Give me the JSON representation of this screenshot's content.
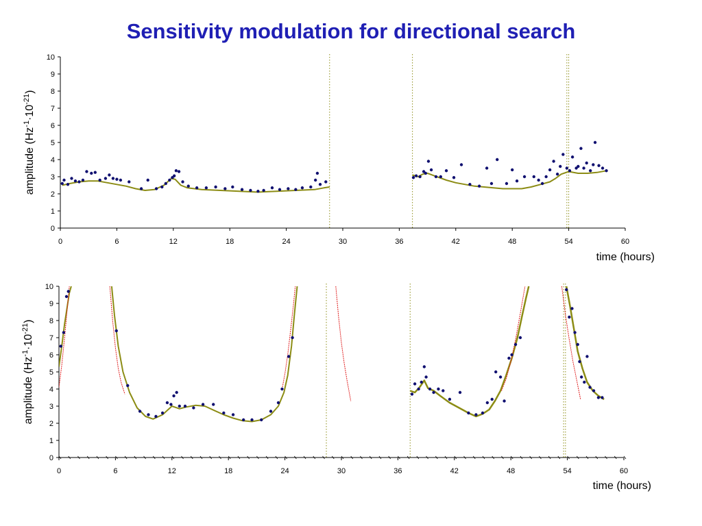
{
  "title": "Sensitivity modulation for directional search",
  "colors": {
    "title": "#1f1fb4",
    "curve": "#8c8c14",
    "points": "#101070",
    "red_curve": "#e02020",
    "vlines": "#8c8c14"
  },
  "chart_data": [
    {
      "type": "scatter",
      "xlabel": "time (hours)",
      "ylabel": "amplitude (Hz-1·10-21)",
      "xlim": [
        0,
        60
      ],
      "ylim": [
        0,
        10
      ],
      "xticks": [
        0,
        6,
        12,
        18,
        24,
        30,
        36,
        42,
        48,
        54,
        60
      ],
      "yticks": [
        0,
        1,
        2,
        3,
        4,
        5,
        6,
        7,
        8,
        9,
        10
      ],
      "grid": false,
      "vertical_lines": [
        28.6,
        37.4,
        53.8,
        54.0
      ],
      "series": [
        {
          "style": "line",
          "x": [
            0.2,
            1.0,
            2.0,
            3.0,
            4.0,
            5.0,
            6.0,
            7.0,
            8.0,
            9.0,
            10.0,
            11.0,
            11.8,
            12.2,
            12.8,
            13.5,
            15.0,
            17.0,
            19.0,
            21.0,
            23.0,
            25.0,
            27.0,
            28.0,
            28.6
          ],
          "y": [
            2.5,
            2.6,
            2.7,
            2.75,
            2.75,
            2.65,
            2.55,
            2.45,
            2.3,
            2.2,
            2.25,
            2.5,
            2.9,
            2.85,
            2.5,
            2.35,
            2.25,
            2.2,
            2.15,
            2.1,
            2.15,
            2.2,
            2.25,
            2.35,
            2.4
          ]
        },
        {
          "style": "line",
          "x": [
            37.4,
            38.0,
            38.5,
            39.0,
            40.0,
            41.0,
            42.0,
            43.0,
            44.0,
            45.0,
            46.0,
            47.0,
            48.0,
            49.0,
            50.0,
            51.0,
            52.0,
            52.6,
            53.2,
            54.0,
            55.0,
            56.0,
            57.0,
            58.0
          ],
          "y": [
            3.1,
            3.0,
            3.15,
            3.2,
            3.0,
            2.8,
            2.65,
            2.55,
            2.45,
            2.4,
            2.35,
            2.3,
            2.3,
            2.3,
            2.4,
            2.55,
            2.7,
            2.9,
            3.15,
            3.3,
            3.2,
            3.2,
            3.25,
            3.35
          ]
        },
        {
          "style": "points",
          "x": [
            0.2,
            0.4,
            0.8,
            1.2,
            1.6,
            2.0,
            2.4,
            2.8,
            3.3,
            3.7,
            4.2,
            4.8,
            5.2,
            5.6,
            6.0,
            6.4,
            7.3,
            8.6,
            9.3,
            10.2,
            10.8,
            11.2,
            11.6,
            11.9,
            12.1,
            12.3,
            12.6,
            13.0,
            13.6,
            14.5,
            15.5,
            16.5,
            17.5,
            18.3,
            19.3,
            20.2,
            21.0,
            21.6,
            22.5,
            23.3,
            24.2,
            25.0,
            25.7,
            26.6,
            27.1,
            27.3,
            27.6,
            28.2,
            37.5,
            37.8,
            38.2,
            38.6,
            38.8,
            39.1,
            39.4,
            39.9,
            40.4,
            41.0,
            41.8,
            42.6,
            43.5,
            44.5,
            45.3,
            45.8,
            46.4,
            47.4,
            48.0,
            48.5,
            49.3,
            50.3,
            50.8,
            51.2,
            51.6,
            52.0,
            52.4,
            52.8,
            53.1,
            53.4,
            53.8,
            54.1,
            54.4,
            54.8,
            55.0,
            55.3,
            55.6,
            55.9,
            56.3,
            56.6,
            56.8,
            57.2,
            57.6,
            58.0
          ],
          "y": [
            2.6,
            2.8,
            2.55,
            2.9,
            2.75,
            2.7,
            2.8,
            3.3,
            3.2,
            3.25,
            2.8,
            2.9,
            3.1,
            2.9,
            2.85,
            2.8,
            2.7,
            2.3,
            2.8,
            2.3,
            2.4,
            2.6,
            2.8,
            2.95,
            3.05,
            3.35,
            3.3,
            2.7,
            2.45,
            2.35,
            2.35,
            2.4,
            2.3,
            2.4,
            2.25,
            2.2,
            2.15,
            2.2,
            2.35,
            2.25,
            2.3,
            2.25,
            2.35,
            2.4,
            2.8,
            3.2,
            2.55,
            2.7,
            2.95,
            3.05,
            3.0,
            3.3,
            3.2,
            3.9,
            3.4,
            3.0,
            3.0,
            3.35,
            2.95,
            3.7,
            2.55,
            2.45,
            3.5,
            2.6,
            4.0,
            2.6,
            3.4,
            2.75,
            3.0,
            3.0,
            2.8,
            2.6,
            3.0,
            3.4,
            3.9,
            3.15,
            3.6,
            4.3,
            3.5,
            3.35,
            4.15,
            3.5,
            3.6,
            4.65,
            3.5,
            3.8,
            3.35,
            3.7,
            5.0,
            3.65,
            3.5,
            3.35
          ]
        }
      ]
    },
    {
      "type": "scatter",
      "xlabel": "time (hours)",
      "ylabel": "amplitude (Hz-1·10-21)",
      "xlim": [
        0,
        60
      ],
      "ylim": [
        0,
        10
      ],
      "xticks": [
        0,
        6,
        12,
        18,
        24,
        30,
        36,
        42,
        48,
        54,
        60
      ],
      "yticks": [
        0,
        1,
        2,
        3,
        4,
        5,
        6,
        7,
        8,
        9,
        10
      ],
      "grid": false,
      "vertical_lines": [
        28.4,
        37.3,
        53.6,
        53.8
      ],
      "series": [
        {
          "style": "line",
          "x": [
            0.0,
            0.3,
            0.6,
            0.9,
            1.1,
            1.3
          ],
          "y": [
            5.3,
            6.5,
            7.8,
            8.9,
            9.6,
            10.0
          ]
        },
        {
          "style": "line",
          "x": [
            5.6,
            5.9,
            6.3,
            6.8,
            7.5,
            8.3,
            9.2,
            10.0,
            11.0,
            12.0,
            12.8,
            13.5,
            14.5,
            15.5,
            16.5,
            17.5,
            18.5,
            19.5,
            20.5,
            21.5,
            22.5,
            23.3,
            23.9,
            24.3,
            24.7,
            25.0,
            25.3
          ],
          "y": [
            10.0,
            8.3,
            6.5,
            5.0,
            3.8,
            2.9,
            2.4,
            2.25,
            2.5,
            3.0,
            2.85,
            2.95,
            3.05,
            3.0,
            2.75,
            2.5,
            2.3,
            2.15,
            2.1,
            2.2,
            2.5,
            3.0,
            3.8,
            4.8,
            6.5,
            8.3,
            10.0
          ]
        },
        {
          "style": "line",
          "x": [
            37.3,
            37.8,
            38.3,
            38.8,
            39.2,
            39.8,
            40.5,
            41.5,
            42.5,
            43.5,
            44.3,
            45.0,
            45.7,
            46.3,
            46.9,
            47.5,
            48.1,
            48.7,
            49.2,
            49.6,
            49.9
          ],
          "y": [
            3.9,
            3.8,
            4.1,
            4.5,
            4.05,
            3.9,
            3.6,
            3.2,
            2.9,
            2.6,
            2.4,
            2.55,
            2.8,
            3.3,
            3.9,
            4.8,
            5.8,
            7.0,
            8.3,
            9.3,
            10.0
          ],
          "width": 2.5
        },
        {
          "style": "line",
          "x": [
            53.9,
            54.3,
            54.7,
            55.1,
            55.6,
            56.1,
            56.7,
            57.3,
            57.9
          ],
          "y": [
            10.0,
            8.8,
            7.5,
            6.2,
            5.2,
            4.4,
            3.9,
            3.6,
            3.4
          ],
          "width": 2.5
        },
        {
          "style": "line",
          "color": "red_curve",
          "width": 1,
          "x": [
            0.0,
            0.3,
            0.6,
            0.9,
            1.1
          ],
          "y": [
            4.1,
            5.4,
            7.0,
            8.8,
            10.0
          ]
        },
        {
          "style": "line",
          "color": "red_curve",
          "width": 1,
          "x": [
            5.4,
            5.7,
            6.0,
            6.3,
            6.6,
            7.0
          ],
          "y": [
            10.0,
            8.0,
            6.4,
            5.2,
            4.4,
            3.7
          ]
        },
        {
          "style": "line",
          "color": "red_curve",
          "width": 1,
          "x": [
            23.7,
            24.0,
            24.3,
            24.6,
            24.9,
            25.1
          ],
          "y": [
            4.0,
            4.9,
            6.0,
            7.4,
            8.9,
            10.0
          ]
        },
        {
          "style": "line",
          "color": "red_curve",
          "width": 1,
          "x": [
            29.4,
            29.7,
            30.0,
            30.3,
            30.6,
            31.0
          ],
          "y": [
            10.0,
            8.2,
            6.7,
            5.5,
            4.5,
            3.3
          ]
        },
        {
          "style": "line",
          "color": "red_curve",
          "width": 1,
          "x": [
            47.0,
            47.5,
            48.0,
            48.5,
            49.0,
            49.5
          ],
          "y": [
            3.9,
            4.6,
            5.6,
            6.9,
            8.4,
            10.0
          ]
        },
        {
          "style": "line",
          "color": "red_curve",
          "width": 1,
          "x": [
            53.4,
            53.8,
            54.2,
            54.6,
            55.0,
            55.4
          ],
          "y": [
            10.0,
            8.3,
            6.9,
            5.6,
            4.5,
            3.4
          ]
        },
        {
          "style": "points",
          "x": [
            0.2,
            0.5,
            0.8,
            1.0,
            6.1,
            7.3,
            8.6,
            9.5,
            10.3,
            11.0,
            11.5,
            11.9,
            12.2,
            12.5,
            12.8,
            13.4,
            14.3,
            15.3,
            16.4,
            17.5,
            18.5,
            19.6,
            20.5,
            21.5,
            22.5,
            23.3,
            23.7,
            24.4,
            24.8,
            37.5,
            37.8,
            38.2,
            38.5,
            38.8,
            39.0,
            39.4,
            39.8,
            40.3,
            40.8,
            41.5,
            42.6,
            43.5,
            44.3,
            45.0,
            45.5,
            46.0,
            46.4,
            46.9,
            47.3,
            47.8,
            48.1,
            48.5,
            49.0,
            53.9,
            54.2,
            54.5,
            54.8,
            55.1,
            55.3,
            55.5,
            55.8,
            56.1,
            56.4,
            56.8,
            57.3,
            57.7
          ],
          "y": [
            6.5,
            7.3,
            9.4,
            9.7,
            7.4,
            4.2,
            2.7,
            2.5,
            2.4,
            2.6,
            3.2,
            3.1,
            3.6,
            3.8,
            3.0,
            3.0,
            2.9,
            3.1,
            3.1,
            2.6,
            2.5,
            2.2,
            2.2,
            2.2,
            2.7,
            3.2,
            4.0,
            5.9,
            7.0,
            3.7,
            4.3,
            4.0,
            4.4,
            5.3,
            4.7,
            4.0,
            3.8,
            4.0,
            3.9,
            3.4,
            3.8,
            2.6,
            2.5,
            2.6,
            3.2,
            3.4,
            5.0,
            4.7,
            3.3,
            5.8,
            6.0,
            6.6,
            7.0,
            9.8,
            8.2,
            8.7,
            7.3,
            6.6,
            5.6,
            4.7,
            4.4,
            5.9,
            4.1,
            3.9,
            3.5,
            3.5
          ]
        }
      ]
    }
  ]
}
